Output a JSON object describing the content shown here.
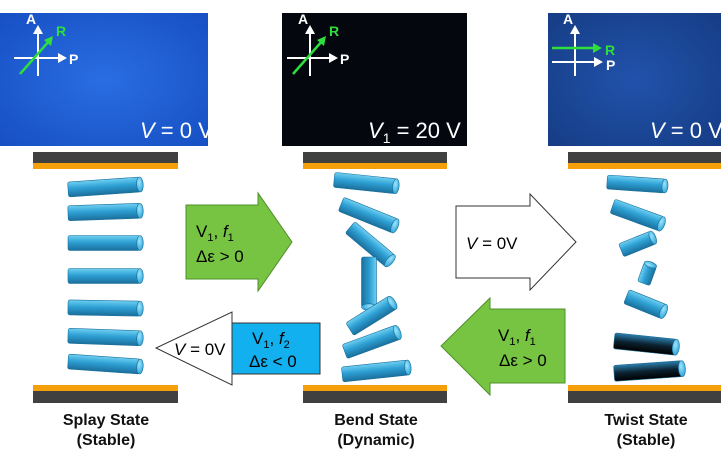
{
  "colors": {
    "splay_micrograph": "#1f5fd6",
    "bend_micrograph": "#05070f",
    "twist_micrograph": "#1b4aa0",
    "arrow_green": "#76c442",
    "arrow_blue": "#12b0ee",
    "electrode_gray": "#404040",
    "electrode_orange": "#f5a00a",
    "lc_cylinder": "#33a6d8",
    "reference_arrow_green": "#2dde3c"
  },
  "panels": {
    "splay": {
      "voltage_var": "V",
      "voltage_rest": " = 0 V",
      "axis_a": "A",
      "axis_p": "P",
      "axis_r": "R",
      "state_name": "Splay State",
      "state_kind": "(Stable)"
    },
    "bend": {
      "voltage_var": "V",
      "voltage_sub": "1",
      "voltage_rest": " = 20 V",
      "axis_a": "A",
      "axis_p": "P",
      "axis_r": "R",
      "state_name": "Bend State",
      "state_kind": "(Dynamic)"
    },
    "twist": {
      "voltage_var": "V",
      "voltage_rest": " = 0 V",
      "axis_a": "A",
      "axis_p": "P",
      "axis_r": "R",
      "state_name": "Twist State",
      "state_kind": "(Stable)"
    }
  },
  "arrows": {
    "splay_to_bend": {
      "line1_v": "V",
      "line1_vsub": "1",
      "line1_sep": ", ",
      "line1_f": "f",
      "line1_fsub": "1",
      "line2": "Δε > 0"
    },
    "bend_to_twist": {
      "label_v": "V",
      "label_rest": " = 0V"
    },
    "twist_to_bend": {
      "line1_v": "V",
      "line1_vsub": "1",
      "line1_sep": ", ",
      "line1_f": "f",
      "line1_fsub": "1",
      "line2": "Δε > 0"
    },
    "bend_to_splay": {
      "label_v": "V",
      "label_rest": " = 0V",
      "box_line1_v": "V",
      "box_line1_vsub": "1",
      "box_line1_sep": ", ",
      "box_line1_f": "f",
      "box_line1_fsub": "2",
      "box_line2": "Δε < 0"
    }
  }
}
